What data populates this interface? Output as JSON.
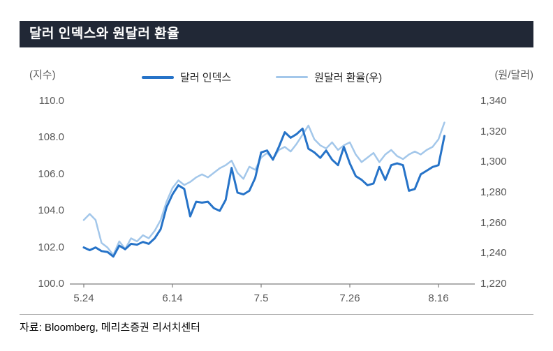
{
  "title": "달러 인덱스와 원달러 환율",
  "left_axis_label": "(지수)",
  "right_axis_label": "(원/달러)",
  "source": "자료: Bloomberg, 메리츠증권 리서치센터",
  "colors": {
    "title_bar_bg": "#212836",
    "dollar_index_line": "#2673c8",
    "won_dollar_line": "#a3c7ea",
    "axis_text": "#595959",
    "axis_line": "#7f7f7f"
  },
  "legend": [
    {
      "label": "달러 인덱스",
      "color": "#2673c8",
      "thickness": 4
    },
    {
      "label": "원달러 환율(우)",
      "color": "#a3c7ea",
      "thickness": 3
    }
  ],
  "chart_data": {
    "type": "line",
    "title": "달러 인덱스와 원달러 환율",
    "x_tick_labels": [
      "5.24",
      "6.14",
      "7.5",
      "7.26",
      "8.16"
    ],
    "x_tick_indices": [
      0,
      15,
      30,
      45,
      60
    ],
    "n_points": 62,
    "grid": false,
    "legend_position": "top",
    "left_axis": {
      "label": "(지수)",
      "min": 100,
      "max": 110,
      "ticks": [
        "100.0",
        "102.0",
        "104.0",
        "106.0",
        "108.0",
        "110.0"
      ]
    },
    "right_axis": {
      "label": "(원/달러)",
      "min": 1220,
      "max": 1340,
      "ticks": [
        "1,220",
        "1,240",
        "1,260",
        "1,280",
        "1,300",
        "1,320",
        "1,340"
      ]
    },
    "series": [
      {
        "name": "원달러 환율(우)",
        "axis": "right",
        "color": "#a3c7ea",
        "width": 2.5,
        "values": [
          1262,
          1266,
          1262,
          1247,
          1244,
          1239,
          1248,
          1243,
          1250,
          1248,
          1252,
          1250,
          1255,
          1262,
          1274,
          1283,
          1288,
          1285,
          1287,
          1290,
          1292,
          1290,
          1293,
          1296,
          1298,
          1301,
          1293,
          1289,
          1297,
          1295,
          1303,
          1306,
          1302,
          1308,
          1310,
          1307,
          1312,
          1318,
          1324,
          1315,
          1311,
          1309,
          1313,
          1308,
          1311,
          1313,
          1305,
          1300,
          1303,
          1306,
          1300,
          1305,
          1308,
          1304,
          1302,
          1305,
          1307,
          1305,
          1308,
          1310,
          1315,
          1326
        ]
      },
      {
        "name": "달러 인덱스",
        "axis": "left",
        "color": "#2673c8",
        "width": 3,
        "values": [
          102.0,
          101.85,
          102.0,
          101.8,
          101.75,
          101.5,
          102.1,
          101.9,
          102.2,
          102.15,
          102.3,
          102.2,
          102.5,
          103.0,
          104.2,
          104.9,
          105.4,
          105.2,
          103.7,
          104.5,
          104.45,
          104.5,
          104.15,
          104.0,
          104.6,
          106.35,
          105.0,
          104.9,
          105.1,
          105.8,
          107.2,
          107.3,
          106.8,
          107.5,
          108.3,
          108.0,
          108.2,
          108.5,
          107.4,
          107.2,
          106.9,
          107.3,
          106.8,
          106.5,
          107.5,
          106.6,
          105.9,
          105.7,
          105.4,
          105.5,
          106.4,
          105.7,
          106.5,
          106.6,
          106.5,
          105.1,
          105.2,
          106.0,
          106.2,
          106.4,
          106.5,
          108.1
        ]
      }
    ]
  }
}
